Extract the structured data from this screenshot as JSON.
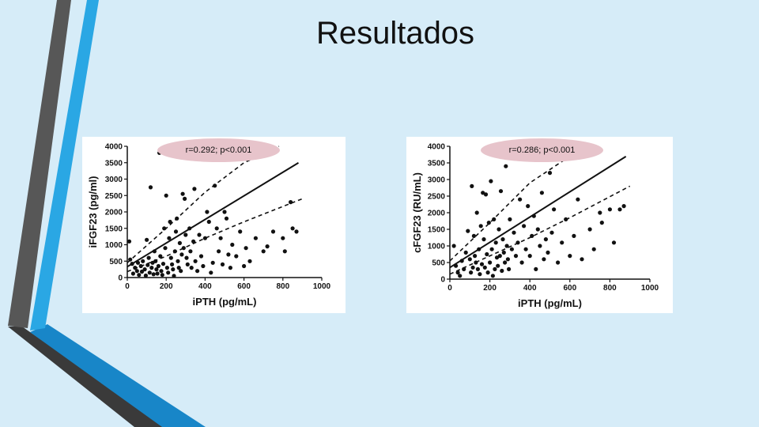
{
  "slide": {
    "title": "Resultados"
  },
  "colors": {
    "background": "#d6ecf8",
    "accent_blue": "#2aa7e4",
    "accent_dark": "#4a4a4a",
    "annotation_fill": "#e7c4cb"
  },
  "chart_data": [
    {
      "type": "scatter",
      "annotation": "r=0.292; p<0.001",
      "xlabel": "iPTH (pg/mL)",
      "ylabel": "iFGF23 (pg/ml)",
      "xlim": [
        0,
        1000
      ],
      "ylim": [
        0,
        4000
      ],
      "xticks": [
        0,
        200,
        400,
        600,
        800,
        1000
      ],
      "yticks": [
        0,
        500,
        1000,
        1500,
        2000,
        2500,
        3000,
        3500,
        4000
      ],
      "regression": {
        "slope": 3.6,
        "intercept": 330
      },
      "ci_upper": [
        [
          0,
          450
        ],
        [
          200,
          1500
        ],
        [
          400,
          2600
        ],
        [
          600,
          3500
        ],
        [
          780,
          4000
        ]
      ],
      "ci_lower": [
        [
          0,
          180
        ],
        [
          200,
          650
        ],
        [
          400,
          1200
        ],
        [
          600,
          1700
        ],
        [
          900,
          2400
        ]
      ],
      "points": [
        [
          10,
          1100
        ],
        [
          15,
          550
        ],
        [
          25,
          420
        ],
        [
          30,
          120
        ],
        [
          40,
          300
        ],
        [
          50,
          200
        ],
        [
          55,
          450
        ],
        [
          60,
          80
        ],
        [
          70,
          350
        ],
        [
          75,
          180
        ],
        [
          80,
          500
        ],
        [
          90,
          250
        ],
        [
          95,
          60
        ],
        [
          100,
          1150
        ],
        [
          105,
          380
        ],
        [
          110,
          600
        ],
        [
          115,
          150
        ],
        [
          120,
          2750
        ],
        [
          125,
          300
        ],
        [
          130,
          450
        ],
        [
          135,
          100
        ],
        [
          140,
          800
        ],
        [
          145,
          500
        ],
        [
          150,
          250
        ],
        [
          155,
          120
        ],
        [
          160,
          350
        ],
        [
          165,
          3800
        ],
        [
          170,
          650
        ],
        [
          175,
          200
        ],
        [
          180,
          80
        ],
        [
          185,
          420
        ],
        [
          190,
          1500
        ],
        [
          195,
          900
        ],
        [
          200,
          2500
        ],
        [
          205,
          300
        ],
        [
          210,
          150
        ],
        [
          215,
          1200
        ],
        [
          220,
          1700
        ],
        [
          225,
          600
        ],
        [
          230,
          400
        ],
        [
          235,
          250
        ],
        [
          240,
          50
        ],
        [
          245,
          800
        ],
        [
          250,
          1400
        ],
        [
          255,
          1800
        ],
        [
          260,
          500
        ],
        [
          265,
          300
        ],
        [
          270,
          1050
        ],
        [
          275,
          200
        ],
        [
          280,
          700
        ],
        [
          285,
          2550
        ],
        [
          290,
          900
        ],
        [
          295,
          2400
        ],
        [
          300,
          1300
        ],
        [
          305,
          600
        ],
        [
          310,
          400
        ],
        [
          320,
          1500
        ],
        [
          325,
          800
        ],
        [
          330,
          300
        ],
        [
          340,
          1100
        ],
        [
          345,
          2700
        ],
        [
          350,
          500
        ],
        [
          360,
          200
        ],
        [
          370,
          1300
        ],
        [
          380,
          650
        ],
        [
          390,
          350
        ],
        [
          400,
          1200
        ],
        [
          410,
          2000
        ],
        [
          420,
          1700
        ],
        [
          430,
          150
        ],
        [
          440,
          450
        ],
        [
          450,
          2800
        ],
        [
          460,
          1500
        ],
        [
          470,
          800
        ],
        [
          480,
          1200
        ],
        [
          490,
          400
        ],
        [
          500,
          2000
        ],
        [
          510,
          1800
        ],
        [
          520,
          700
        ],
        [
          530,
          300
        ],
        [
          540,
          1000
        ],
        [
          560,
          650
        ],
        [
          580,
          1400
        ],
        [
          600,
          350
        ],
        [
          610,
          900
        ],
        [
          630,
          500
        ],
        [
          660,
          1200
        ],
        [
          700,
          800
        ],
        [
          720,
          950
        ],
        [
          750,
          1400
        ],
        [
          800,
          1200
        ],
        [
          810,
          800
        ],
        [
          840,
          2300
        ],
        [
          850,
          1500
        ],
        [
          870,
          1400
        ]
      ]
    },
    {
      "type": "scatter",
      "annotation": "r=0.286; p<0.001",
      "xlabel": "iPTH (pg/mL)",
      "ylabel": "cFGF23 (RU/mL)",
      "xlim": [
        0,
        1000
      ],
      "ylim": [
        0,
        4000
      ],
      "xticks": [
        0,
        200,
        400,
        600,
        800,
        1000
      ],
      "yticks": [
        0,
        500,
        1000,
        1500,
        2000,
        2500,
        3000,
        3500,
        4000
      ],
      "regression": {
        "slope": 3.8,
        "intercept": 350
      },
      "ci_upper": [
        [
          0,
          550
        ],
        [
          200,
          1700
        ],
        [
          400,
          2900
        ],
        [
          600,
          3700
        ],
        [
          700,
          4000
        ]
      ],
      "ci_lower": [
        [
          0,
          150
        ],
        [
          200,
          700
        ],
        [
          400,
          1250
        ],
        [
          600,
          1850
        ],
        [
          900,
          2800
        ]
      ],
      "points": [
        [
          20,
          1000
        ],
        [
          30,
          400
        ],
        [
          40,
          200
        ],
        [
          50,
          100
        ],
        [
          60,
          550
        ],
        [
          70,
          300
        ],
        [
          80,
          800
        ],
        [
          90,
          1450
        ],
        [
          100,
          600
        ],
        [
          105,
          200
        ],
        [
          110,
          2800
        ],
        [
          115,
          350
        ],
        [
          120,
          1300
        ],
        [
          125,
          700
        ],
        [
          130,
          500
        ],
        [
          135,
          2000
        ],
        [
          140,
          300
        ],
        [
          145,
          900
        ],
        [
          150,
          150
        ],
        [
          155,
          1600
        ],
        [
          160,
          450
        ],
        [
          165,
          2600
        ],
        [
          170,
          1200
        ],
        [
          175,
          350
        ],
        [
          180,
          2550
        ],
        [
          185,
          750
        ],
        [
          190,
          200
        ],
        [
          195,
          1700
        ],
        [
          200,
          500
        ],
        [
          205,
          2950
        ],
        [
          210,
          900
        ],
        [
          215,
          100
        ],
        [
          220,
          1800
        ],
        [
          225,
          300
        ],
        [
          230,
          1100
        ],
        [
          235,
          650
        ],
        [
          240,
          400
        ],
        [
          245,
          1500
        ],
        [
          250,
          700
        ],
        [
          255,
          2650
        ],
        [
          260,
          250
        ],
        [
          265,
          1200
        ],
        [
          270,
          800
        ],
        [
          275,
          500
        ],
        [
          280,
          3400
        ],
        [
          285,
          1000
        ],
        [
          290,
          600
        ],
        [
          295,
          300
        ],
        [
          300,
          1800
        ],
        [
          310,
          900
        ],
        [
          320,
          1400
        ],
        [
          330,
          700
        ],
        [
          340,
          1100
        ],
        [
          350,
          2400
        ],
        [
          360,
          500
        ],
        [
          370,
          1600
        ],
        [
          380,
          900
        ],
        [
          390,
          2200
        ],
        [
          400,
          700
        ],
        [
          410,
          1300
        ],
        [
          420,
          1900
        ],
        [
          430,
          300
        ],
        [
          440,
          1500
        ],
        [
          450,
          1000
        ],
        [
          460,
          2600
        ],
        [
          470,
          600
        ],
        [
          480,
          1200
        ],
        [
          490,
          800
        ],
        [
          500,
          3200
        ],
        [
          510,
          1400
        ],
        [
          520,
          2100
        ],
        [
          540,
          500
        ],
        [
          560,
          1100
        ],
        [
          580,
          1800
        ],
        [
          600,
          700
        ],
        [
          620,
          1300
        ],
        [
          640,
          2400
        ],
        [
          660,
          600
        ],
        [
          700,
          1500
        ],
        [
          720,
          900
        ],
        [
          750,
          2000
        ],
        [
          760,
          1700
        ],
        [
          800,
          2100
        ],
        [
          820,
          1100
        ],
        [
          850,
          2100
        ],
        [
          870,
          2200
        ]
      ]
    }
  ]
}
